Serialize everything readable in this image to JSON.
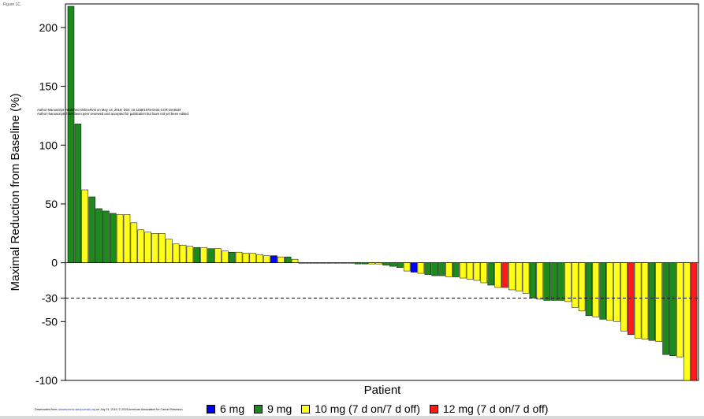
{
  "figure_label": "Figure 1C.",
  "watermark": {
    "line1": "Author Manuscript Published OnlineFirst on May 14, 2019; DOI: 10.1158/1078-0432.CCR-18-3534",
    "line2": "Author manuscripts have been peer reviewed and accepted for publication but have not yet been edited."
  },
  "download_note": {
    "prefix": "Downloaded from",
    "link": "clincancerres.aacrjournals.org",
    "suffix": "on July 21, 2019. © 2019 American Association for Cancer Research."
  },
  "legend": {
    "items": [
      {
        "label": "6 mg",
        "color": "#0000ff"
      },
      {
        "label": "9 mg",
        "color": "#1e8a1e"
      },
      {
        "label": "10 mg (7 d on/7 d off)",
        "color": "#ffff1a"
      },
      {
        "label": "12 mg (7 d on/7 d off)",
        "color": "#ff1a1a"
      }
    ]
  },
  "chart_data": {
    "type": "bar",
    "xlabel": "Patient",
    "ylabel": "Maximal Reduction from Baseline (%)",
    "ylim": [
      -100,
      220
    ],
    "yticks": [
      200,
      150,
      100,
      50,
      0,
      -30,
      -50,
      -100
    ],
    "reference_line": {
      "y": -30,
      "style": "dashed"
    },
    "series_colors": {
      "6 mg": "#0000ff",
      "9 mg": "#1e8a1e",
      "10 mg (7 d on/7 d off)": "#ffff1a",
      "12 mg (7 d on/7 d off)": "#ff1a1a"
    },
    "bars": [
      {
        "value": 218,
        "dose": "9 mg"
      },
      {
        "value": 118,
        "dose": "9 mg"
      },
      {
        "value": 62,
        "dose": "10 mg (7 d on/7 d off)"
      },
      {
        "value": 56,
        "dose": "9 mg"
      },
      {
        "value": 46,
        "dose": "9 mg"
      },
      {
        "value": 44,
        "dose": "9 mg"
      },
      {
        "value": 42,
        "dose": "9 mg"
      },
      {
        "value": 41,
        "dose": "10 mg (7 d on/7 d off)"
      },
      {
        "value": 41,
        "dose": "10 mg (7 d on/7 d off)"
      },
      {
        "value": 34,
        "dose": "10 mg (7 d on/7 d off)"
      },
      {
        "value": 28,
        "dose": "10 mg (7 d on/7 d off)"
      },
      {
        "value": 26,
        "dose": "10 mg (7 d on/7 d off)"
      },
      {
        "value": 25,
        "dose": "10 mg (7 d on/7 d off)"
      },
      {
        "value": 25,
        "dose": "10 mg (7 d on/7 d off)"
      },
      {
        "value": 20,
        "dose": "10 mg (7 d on/7 d off)"
      },
      {
        "value": 16,
        "dose": "10 mg (7 d on/7 d off)"
      },
      {
        "value": 15,
        "dose": "10 mg (7 d on/7 d off)"
      },
      {
        "value": 14,
        "dose": "10 mg (7 d on/7 d off)"
      },
      {
        "value": 13,
        "dose": "9 mg"
      },
      {
        "value": 13,
        "dose": "10 mg (7 d on/7 d off)"
      },
      {
        "value": 12,
        "dose": "9 mg"
      },
      {
        "value": 12,
        "dose": "10 mg (7 d on/7 d off)"
      },
      {
        "value": 10,
        "dose": "10 mg (7 d on/7 d off)"
      },
      {
        "value": 9,
        "dose": "9 mg"
      },
      {
        "value": 9,
        "dose": "10 mg (7 d on/7 d off)"
      },
      {
        "value": 8,
        "dose": "10 mg (7 d on/7 d off)"
      },
      {
        "value": 8,
        "dose": "10 mg (7 d on/7 d off)"
      },
      {
        "value": 7,
        "dose": "10 mg (7 d on/7 d off)"
      },
      {
        "value": 6,
        "dose": "10 mg (7 d on/7 d off)"
      },
      {
        "value": 6,
        "dose": "6 mg"
      },
      {
        "value": 5,
        "dose": "10 mg (7 d on/7 d off)"
      },
      {
        "value": 5,
        "dose": "9 mg"
      },
      {
        "value": 3,
        "dose": "10 mg (7 d on/7 d off)"
      },
      {
        "value": 0,
        "dose": "9 mg"
      },
      {
        "value": 0,
        "dose": "9 mg"
      },
      {
        "value": 0,
        "dose": "9 mg"
      },
      {
        "value": 0,
        "dose": "9 mg"
      },
      {
        "value": 0,
        "dose": "9 mg"
      },
      {
        "value": 0,
        "dose": "9 mg"
      },
      {
        "value": 0,
        "dose": "9 mg"
      },
      {
        "value": 0,
        "dose": "9 mg"
      },
      {
        "value": -1,
        "dose": "9 mg"
      },
      {
        "value": -1,
        "dose": "9 mg"
      },
      {
        "value": -1,
        "dose": "10 mg (7 d on/7 d off)"
      },
      {
        "value": -1,
        "dose": "10 mg (7 d on/7 d off)"
      },
      {
        "value": -2,
        "dose": "9 mg"
      },
      {
        "value": -3,
        "dose": "9 mg"
      },
      {
        "value": -4,
        "dose": "9 mg"
      },
      {
        "value": -7,
        "dose": "10 mg (7 d on/7 d off)"
      },
      {
        "value": -8,
        "dose": "6 mg"
      },
      {
        "value": -9,
        "dose": "10 mg (7 d on/7 d off)"
      },
      {
        "value": -10,
        "dose": "9 mg"
      },
      {
        "value": -11,
        "dose": "9 mg"
      },
      {
        "value": -11,
        "dose": "9 mg"
      },
      {
        "value": -12,
        "dose": "10 mg (7 d on/7 d off)"
      },
      {
        "value": -12,
        "dose": "9 mg"
      },
      {
        "value": -13,
        "dose": "10 mg (7 d on/7 d off)"
      },
      {
        "value": -14,
        "dose": "10 mg (7 d on/7 d off)"
      },
      {
        "value": -15,
        "dose": "10 mg (7 d on/7 d off)"
      },
      {
        "value": -17,
        "dose": "10 mg (7 d on/7 d off)"
      },
      {
        "value": -19,
        "dose": "9 mg"
      },
      {
        "value": -21,
        "dose": "10 mg (7 d on/7 d off)"
      },
      {
        "value": -21,
        "dose": "12 mg (7 d on/7 d off)"
      },
      {
        "value": -23,
        "dose": "10 mg (7 d on/7 d off)"
      },
      {
        "value": -24,
        "dose": "10 mg (7 d on/7 d off)"
      },
      {
        "value": -26,
        "dose": "10 mg (7 d on/7 d off)"
      },
      {
        "value": -30,
        "dose": "9 mg"
      },
      {
        "value": -31,
        "dose": "10 mg (7 d on/7 d off)"
      },
      {
        "value": -32,
        "dose": "9 mg"
      },
      {
        "value": -32,
        "dose": "9 mg"
      },
      {
        "value": -32,
        "dose": "9 mg"
      },
      {
        "value": -33,
        "dose": "10 mg (7 d on/7 d off)"
      },
      {
        "value": -38,
        "dose": "10 mg (7 d on/7 d off)"
      },
      {
        "value": -41,
        "dose": "10 mg (7 d on/7 d off)"
      },
      {
        "value": -45,
        "dose": "9 mg"
      },
      {
        "value": -46,
        "dose": "10 mg (7 d on/7 d off)"
      },
      {
        "value": -48,
        "dose": "9 mg"
      },
      {
        "value": -49,
        "dose": "10 mg (7 d on/7 d off)"
      },
      {
        "value": -50,
        "dose": "10 mg (7 d on/7 d off)"
      },
      {
        "value": -58,
        "dose": "10 mg (7 d on/7 d off)"
      },
      {
        "value": -61,
        "dose": "12 mg (7 d on/7 d off)"
      },
      {
        "value": -64,
        "dose": "10 mg (7 d on/7 d off)"
      },
      {
        "value": -65,
        "dose": "10 mg (7 d on/7 d off)"
      },
      {
        "value": -66,
        "dose": "9 mg"
      },
      {
        "value": -67,
        "dose": "10 mg (7 d on/7 d off)"
      },
      {
        "value": -78,
        "dose": "9 mg"
      },
      {
        "value": -79,
        "dose": "9 mg"
      },
      {
        "value": -80,
        "dose": "10 mg (7 d on/7 d off)"
      },
      {
        "value": -100,
        "dose": "10 mg (7 d on/7 d off)"
      },
      {
        "value": -100,
        "dose": "12 mg (7 d on/7 d off)"
      }
    ]
  }
}
